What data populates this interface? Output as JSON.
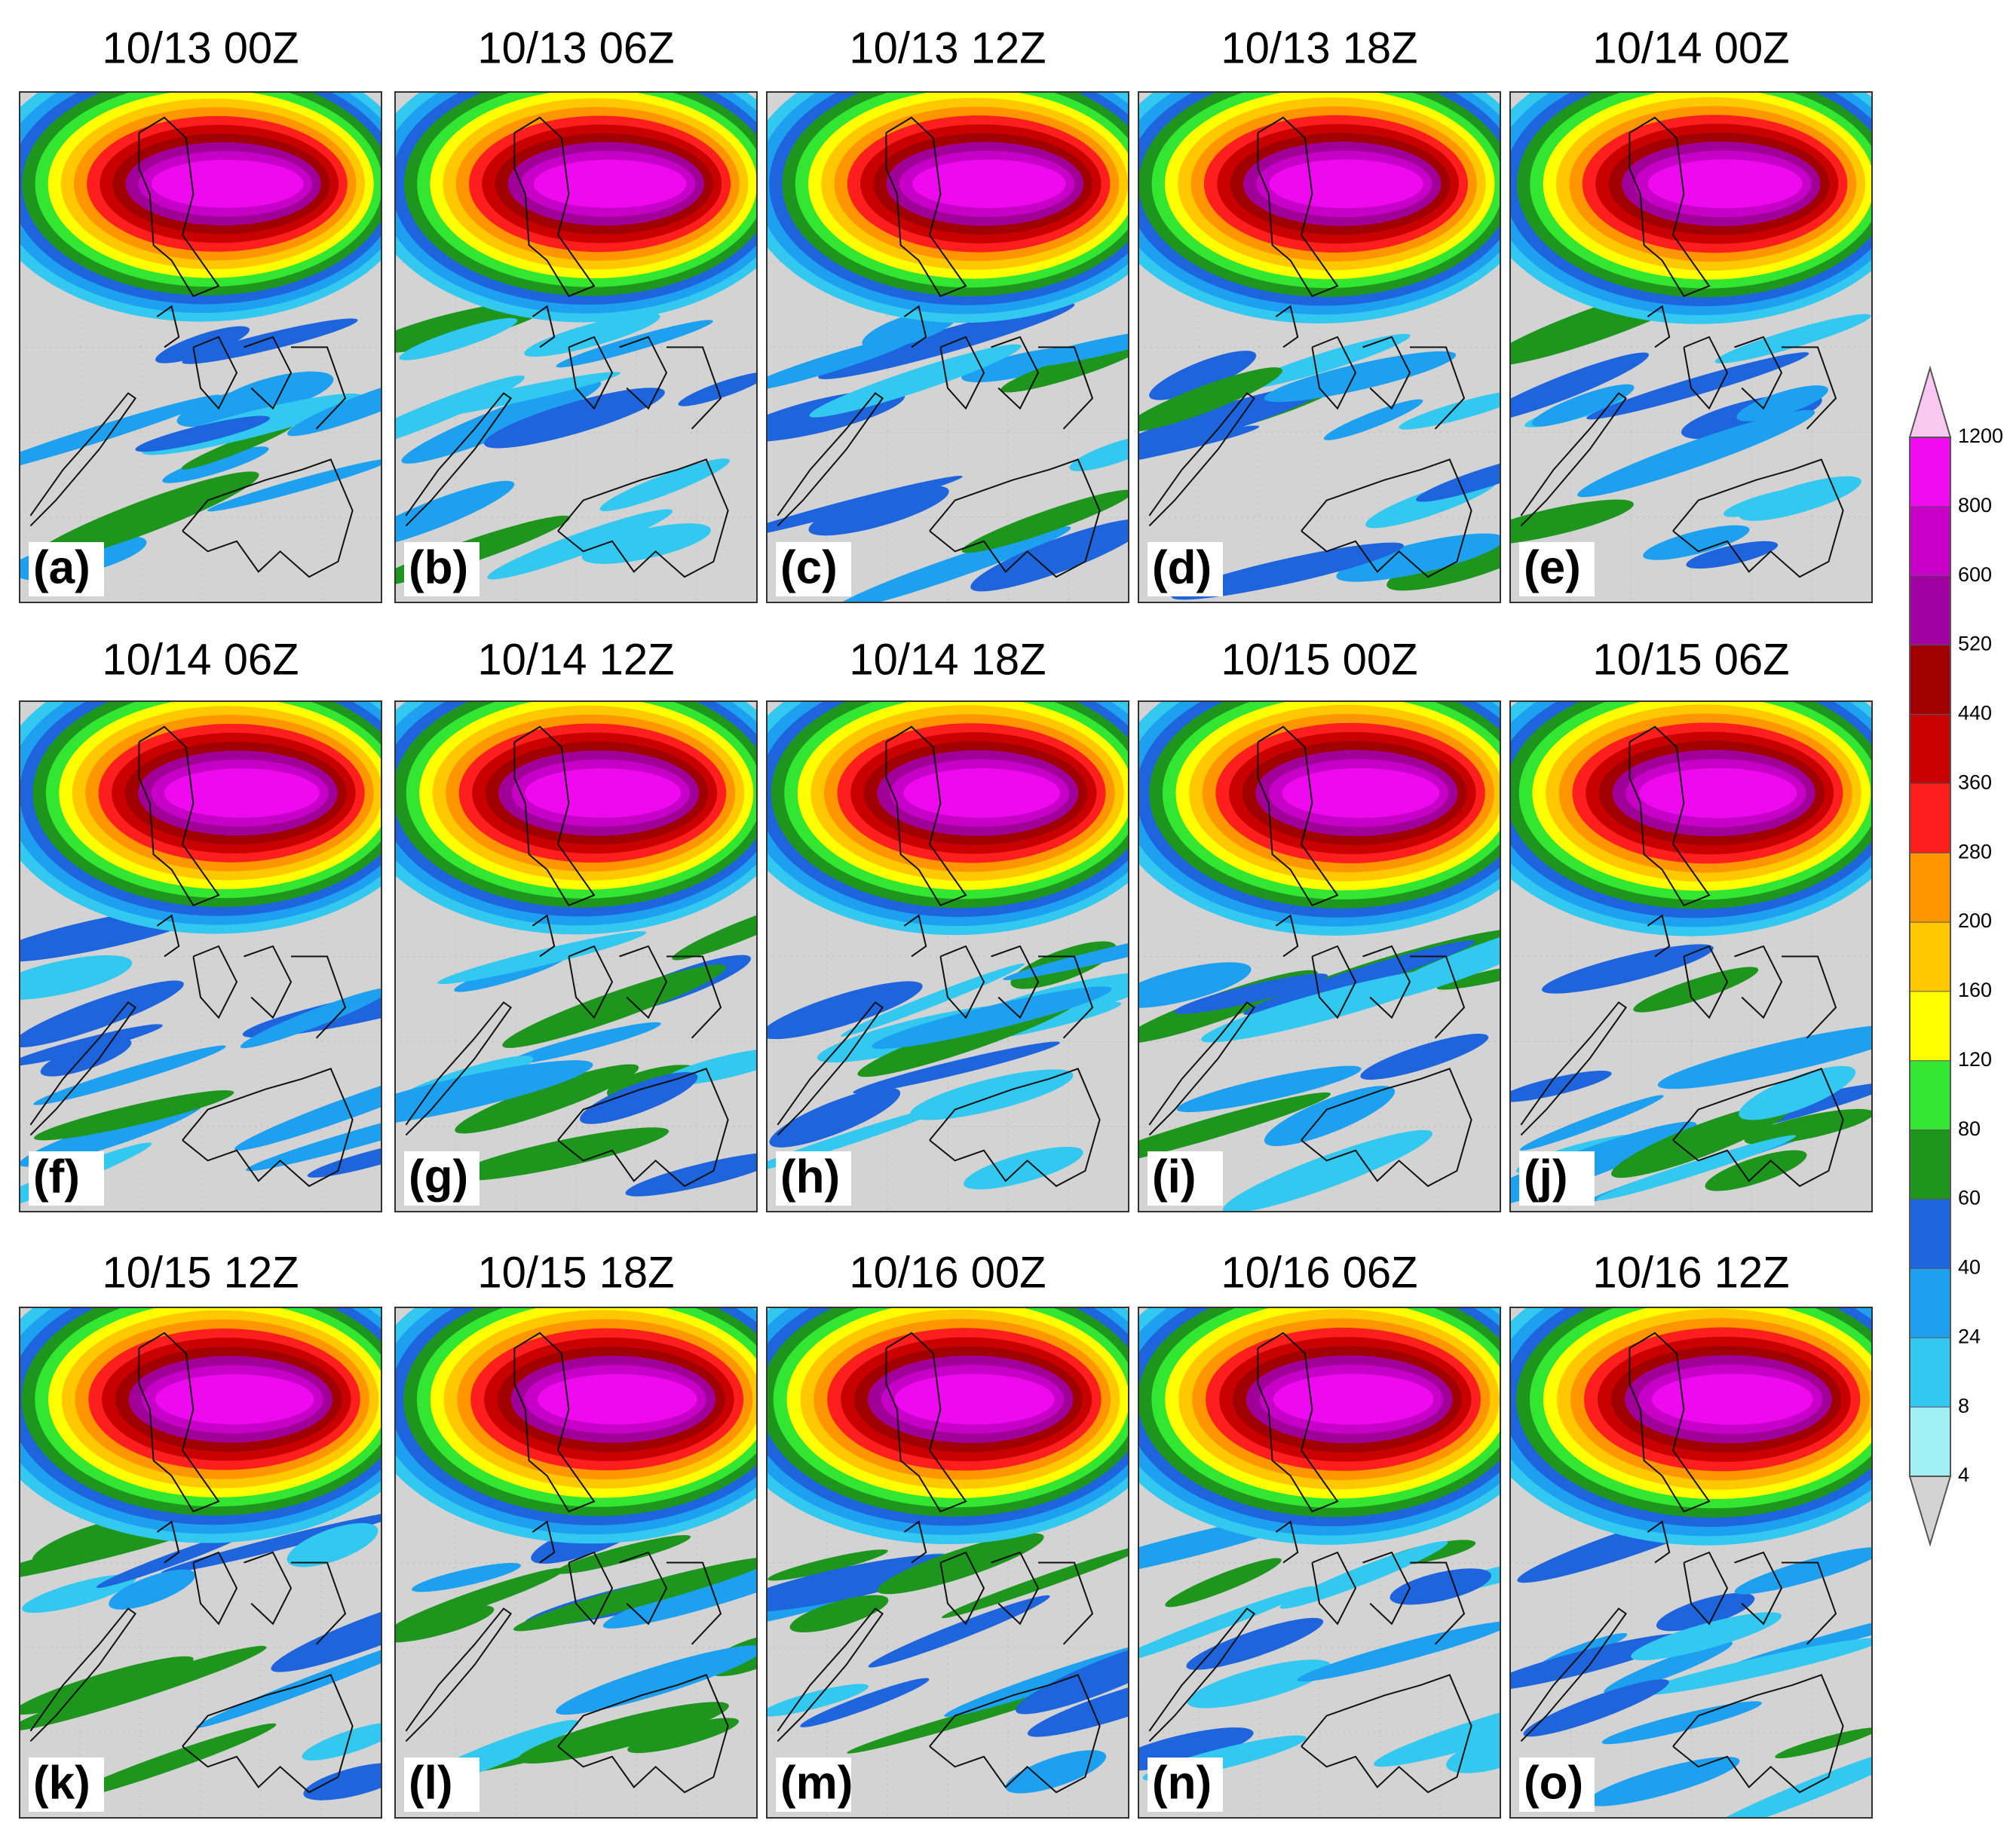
{
  "panels": [
    {
      "title": "10/13 00Z",
      "label": "(a)"
    },
    {
      "title": "10/13 06Z",
      "label": "(b)"
    },
    {
      "title": "10/13 12Z",
      "label": "(c)"
    },
    {
      "title": "10/13 18Z",
      "label": "(d)"
    },
    {
      "title": "10/14 00Z",
      "label": "(e)"
    },
    {
      "title": "10/14 06Z",
      "label": "(f)"
    },
    {
      "title": "10/14 12Z",
      "label": "(g)"
    },
    {
      "title": "10/14 18Z",
      "label": "(h)"
    },
    {
      "title": "10/15 00Z",
      "label": "(i)"
    },
    {
      "title": "10/15 06Z",
      "label": "(j)"
    },
    {
      "title": "10/15 12Z",
      "label": "(k)"
    },
    {
      "title": "10/15 18Z",
      "label": "(l)"
    },
    {
      "title": "10/16 00Z",
      "label": "(m)"
    },
    {
      "title": "10/16 06Z",
      "label": "(n)"
    },
    {
      "title": "10/16 12Z",
      "label": "(o)"
    }
  ],
  "colorbar": {
    "levels": [
      4,
      8,
      24,
      40,
      60,
      80,
      120,
      160,
      200,
      280,
      360,
      440,
      520,
      600,
      800,
      1200
    ],
    "colors": [
      "#d3d3d3",
      "#a0f0f5",
      "#32c8f0",
      "#1ea0f0",
      "#1e64dc",
      "#1e961e",
      "#32e632",
      "#ffff00",
      "#ffc800",
      "#ff9600",
      "#ff1e1e",
      "#c80000",
      "#a00000",
      "#a000a0",
      "#c800c8",
      "#f00af0",
      "#f8c8f0"
    ]
  }
}
